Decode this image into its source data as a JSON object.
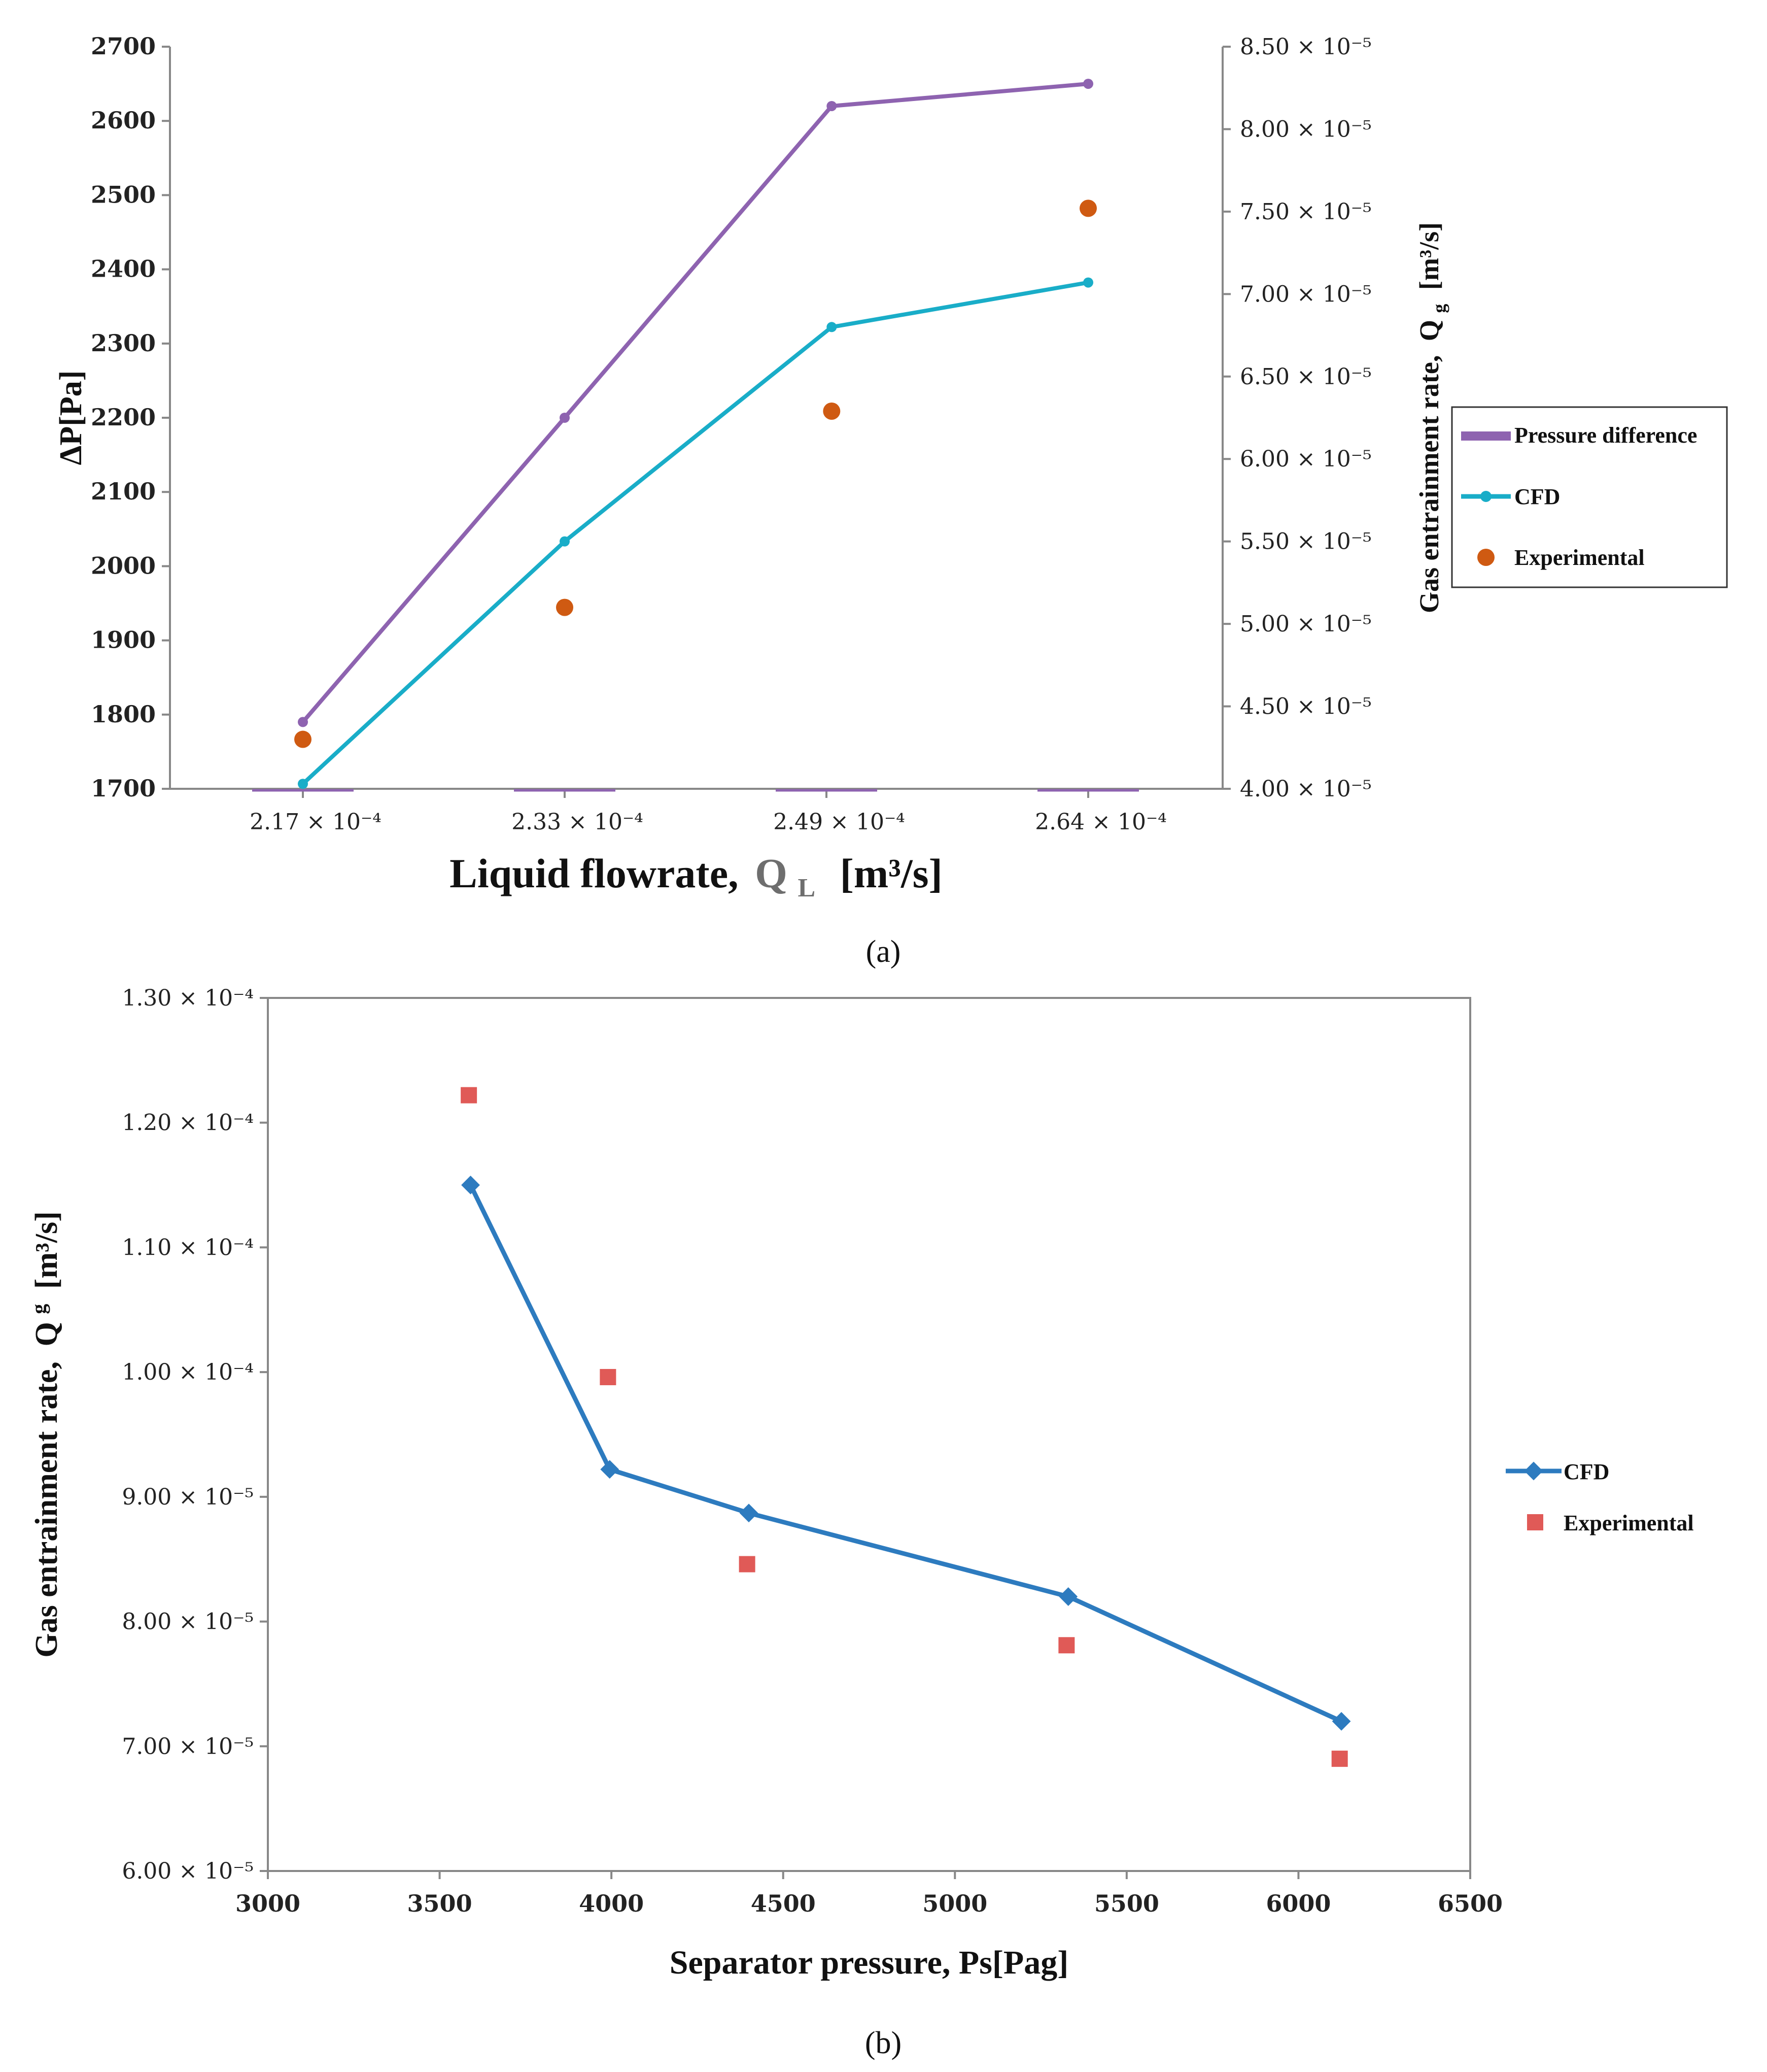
{
  "chart_data": [
    {
      "type": "line",
      "panel": "(a)",
      "xlabel_text": "Liquid flowrate,",
      "xlabel_symbol": "Q",
      "xlabel_sub": "L",
      "xlabel_units": "[m³/s]",
      "ylabel_left": "ΔP[Pa]",
      "ylabel_right_text": "Gas entrainment rate,",
      "ylabel_right_symbol": "Q",
      "ylabel_right_sub": "g",
      "ylabel_right_units": "[m³/s]",
      "categories": [
        "2.17 × 10⁻⁴",
        "2.33 × 10⁻⁴",
        "2.49 × 10⁻⁴",
        "2.64 × 10⁻⁴"
      ],
      "ylim_left": [
        1700,
        2700
      ],
      "yticks_left": [
        "1700",
        "1800",
        "1900",
        "2000",
        "2100",
        "2200",
        "2300",
        "2400",
        "2500",
        "2600",
        "2700"
      ],
      "ylim_right": [
        4e-05,
        8.5e-05
      ],
      "yticks_right": [
        "4.00 × 10⁻⁵",
        "4.50 × 10⁻⁵",
        "5.00 × 10⁻⁵",
        "5.50 × 10⁻⁵",
        "6.00 × 10⁻⁵",
        "6.50 × 10⁻⁵",
        "7.00 × 10⁻⁵",
        "7.50 × 10⁻⁵",
        "8.00 × 10⁻⁵",
        "8.50 × 10⁻⁵"
      ],
      "series": [
        {
          "name": "Pressure difference",
          "axis": "left",
          "x": [
            0,
            1,
            2.02,
            3
          ],
          "values": [
            1790,
            2200,
            2620,
            2650
          ],
          "color": "#8e63b0"
        },
        {
          "name": "CFD",
          "axis": "right",
          "x": [
            0,
            1,
            2.02,
            3
          ],
          "values": [
            4.03e-05,
            5.5e-05,
            6.8e-05,
            7.07e-05
          ],
          "color": "#19adc8"
        },
        {
          "name": "Experimental",
          "axis": "right",
          "x": [
            0,
            1,
            2.02,
            3
          ],
          "values": [
            4.3e-05,
            5.1e-05,
            6.29e-05,
            7.52e-05
          ],
          "color": "#cf5a12"
        }
      ],
      "legend": [
        "Pressure difference",
        "CFD",
        "Experimental"
      ],
      "legend_position": "right"
    },
    {
      "type": "line",
      "panel": "(b)",
      "xlabel": "Separator pressure, Ps[Pag]",
      "ylabel_text": "Gas entrainment rate,",
      "ylabel_symbol": "Q",
      "ylabel_sup": "g",
      "ylabel_units": "[m³/s]",
      "xlim": [
        3000,
        6500
      ],
      "xticks": [
        "3000",
        "3500",
        "4000",
        "4500",
        "5000",
        "5500",
        "6000",
        "6500"
      ],
      "ylim": [
        6e-05,
        0.00013
      ],
      "yticks": [
        "6.00 × 10⁻⁵",
        "7.00 × 10⁻⁵",
        "8.00 × 10⁻⁵",
        "9.00 × 10⁻⁵",
        "1.00 × 10⁻⁴",
        "1.10 × 10⁻⁴",
        "1.20 × 10⁻⁴",
        "1.30 × 10⁻⁴"
      ],
      "series": [
        {
          "name": "CFD",
          "x": [
            3590,
            3995,
            4400,
            5330,
            6125
          ],
          "values": [
            0.000115,
            9.22e-05,
            8.87e-05,
            8.2e-05,
            7.2e-05
          ],
          "color": "#2d7bbf"
        },
        {
          "name": "Experimental",
          "x": [
            3585,
            3990,
            4395,
            5325,
            6120
          ],
          "values": [
            0.0001222,
            9.96e-05,
            8.46e-05,
            7.81e-05,
            6.9e-05
          ],
          "color": "#e05a57"
        }
      ],
      "legend": [
        "CFD",
        "Experimental"
      ],
      "legend_position": "right"
    }
  ]
}
